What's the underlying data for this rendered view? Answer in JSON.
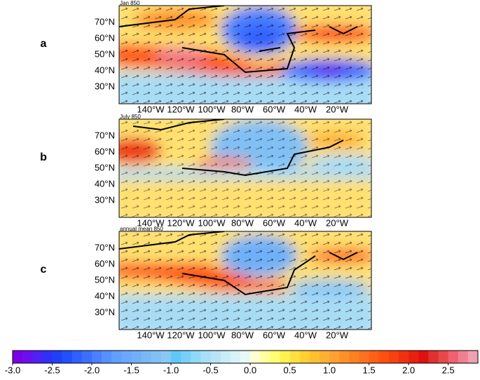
{
  "panels": [
    {
      "label": "a",
      "title": "Jan  850"
    },
    {
      "label": "b",
      "title": "July  850"
    },
    {
      "label": "c",
      "title": "annual mean  850"
    }
  ],
  "lat_labels": [
    "70°N",
    "60°N",
    "50°N",
    "40°N",
    "30°N"
  ],
  "lon_labels": [
    "140°W",
    "120°W",
    "100°W",
    "80°W",
    "60°W",
    "40°W",
    "20°W"
  ],
  "colorbar": {
    "lim": [
      -3.0,
      2.875
    ],
    "ticks": [
      {
        "value": -3.0,
        "label": "-3.0"
      },
      {
        "value": -2.5,
        "label": "-2.5"
      },
      {
        "value": -2.0,
        "label": "-2.0"
      },
      {
        "value": -1.5,
        "label": "-1.5"
      },
      {
        "value": -1.0,
        "label": "-1.0"
      },
      {
        "value": -0.5,
        "label": "-0.5"
      },
      {
        "value": 0.0,
        "label": "0.0"
      },
      {
        "value": 0.5,
        "label": "0.5"
      },
      {
        "value": 1.0,
        "label": "1.0"
      },
      {
        "value": 1.5,
        "label": "1.5"
      },
      {
        "value": 2.0,
        "label": "2.0"
      },
      {
        "value": 2.5,
        "label": "2.5"
      }
    ],
    "colors": [
      "#7a00e6",
      "#6a10f0",
      "#5020f5",
      "#3030f8",
      "#2040f8",
      "#2050ff",
      "#3060ff",
      "#3a70ff",
      "#4a80ff",
      "#5590ff",
      "#60a0ff",
      "#6aa8ff",
      "#70b0f8",
      "#78b8f5",
      "#80c0f5",
      "#88c8f5",
      "#60c8f8",
      "#78d0f8",
      "#90d8f8",
      "#a8dff8",
      "#b8e4f8",
      "#c8ecf8",
      "#d8f2f8",
      "#e8f8f8",
      "#ffffd0",
      "#ffffa0",
      "#ffff70",
      "#fff050",
      "#ffe040",
      "#ffd030",
      "#ffc030",
      "#ffb030",
      "#ffa030",
      "#ff9028",
      "#ff8020",
      "#ff7020",
      "#ff6018",
      "#ff5010",
      "#f84010",
      "#f03010",
      "#e82010",
      "#e01010",
      "#e03030",
      "#e84848",
      "#f06070",
      "#f08090",
      "#f0a0b0"
    ]
  }
}
